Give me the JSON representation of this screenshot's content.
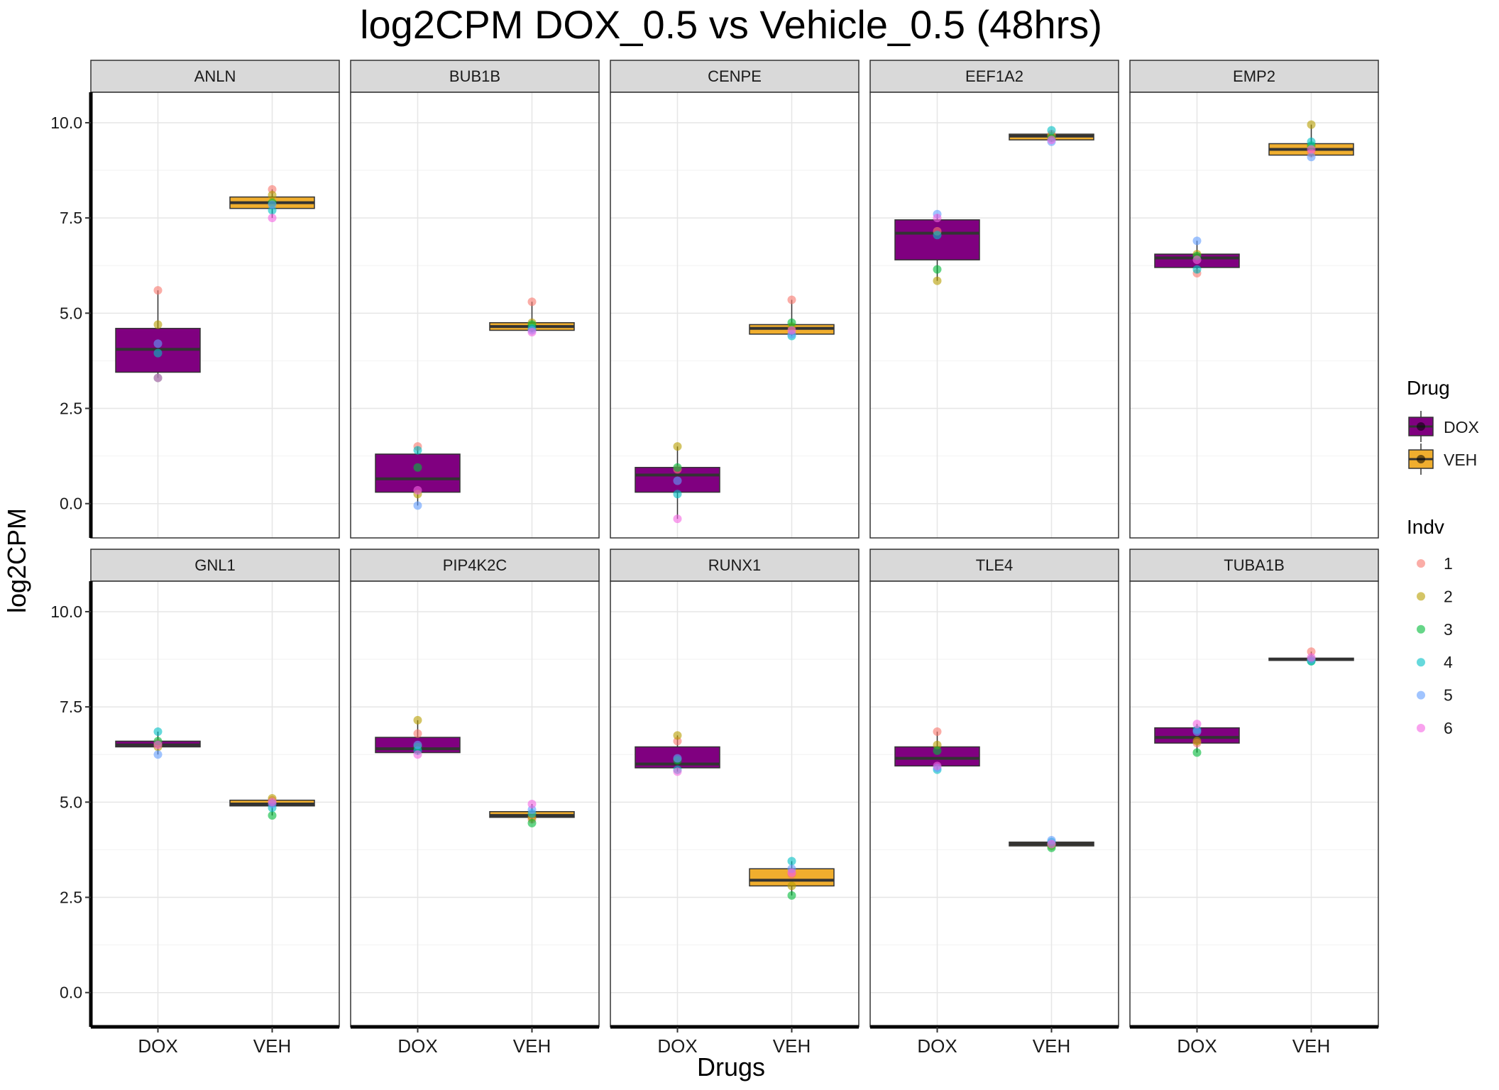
{
  "chart_data": {
    "type": "box",
    "title": "log2CPM DOX_0.5 vs Vehicle_0.5 (48hrs)",
    "xlabel": "Drugs",
    "ylabel": "log2CPM",
    "ylim": [
      -0.9,
      10.8
    ],
    "yticks": [
      0,
      2.5,
      5,
      7.5,
      10
    ],
    "ytick_labels": [
      "0.0",
      "2.5",
      "5.0",
      "7.5",
      "10.0"
    ],
    "categories": [
      "DOX",
      "VEH"
    ],
    "facet_layout": "2 rows x 5 columns",
    "grid": true,
    "legend": {
      "placement": "right",
      "drug": {
        "title": "Drug",
        "entries": [
          {
            "label": "DOX",
            "color": "#800080"
          },
          {
            "label": "VEH",
            "color": "#F0AE2E"
          }
        ]
      },
      "indv": {
        "title": "Indv",
        "entries": [
          {
            "label": "1",
            "color": "#F8766D"
          },
          {
            "label": "2",
            "color": "#B79F00"
          },
          {
            "label": "3",
            "color": "#00BA38"
          },
          {
            "label": "4",
            "color": "#00BFC4"
          },
          {
            "label": "5",
            "color": "#619CFF"
          },
          {
            "label": "6",
            "color": "#F564E3"
          }
        ]
      }
    },
    "facets": [
      {
        "name": "ANLN",
        "DOX": {
          "q1": 3.45,
          "median": 4.05,
          "q3": 4.6,
          "lo": 3.3,
          "hi": 5.6,
          "points": [
            5.6,
            4.7,
            3.3,
            3.95,
            4.2,
            3.3
          ]
        },
        "VEH": {
          "q1": 7.75,
          "median": 7.9,
          "q3": 8.05,
          "lo": 7.5,
          "hi": 8.25,
          "points": [
            8.25,
            8.1,
            7.9,
            7.7,
            7.85,
            7.5
          ]
        }
      },
      {
        "name": "BUB1B",
        "DOX": {
          "q1": 0.3,
          "median": 0.65,
          "q3": 1.3,
          "lo": -0.05,
          "hi": 1.5,
          "points": [
            1.5,
            0.25,
            0.95,
            1.4,
            -0.05,
            0.35
          ]
        },
        "VEH": {
          "q1": 4.55,
          "median": 4.65,
          "q3": 4.75,
          "lo": 4.5,
          "hi": 5.3,
          "points": [
            5.3,
            4.75,
            4.7,
            4.6,
            4.55,
            4.5
          ]
        }
      },
      {
        "name": "CENPE",
        "DOX": {
          "q1": 0.3,
          "median": 0.75,
          "q3": 0.95,
          "lo": -0.4,
          "hi": 1.5,
          "points": [
            0.9,
            1.5,
            0.95,
            0.25,
            0.6,
            -0.4
          ]
        },
        "VEH": {
          "q1": 4.45,
          "median": 4.6,
          "q3": 4.7,
          "lo": 4.4,
          "hi": 5.35,
          "points": [
            5.35,
            4.65,
            4.75,
            4.4,
            4.45,
            4.55
          ]
        }
      },
      {
        "name": "EEF1A2",
        "DOX": {
          "q1": 6.4,
          "median": 7.1,
          "q3": 7.45,
          "lo": 5.85,
          "hi": 7.6,
          "points": [
            7.15,
            5.85,
            6.15,
            7.05,
            7.6,
            7.5
          ]
        },
        "VEH": {
          "q1": 9.55,
          "median": 9.65,
          "q3": 9.7,
          "lo": 9.5,
          "hi": 9.8,
          "points": [
            9.7,
            9.65,
            9.6,
            9.8,
            9.5,
            9.55
          ]
        }
      },
      {
        "name": "EMP2",
        "DOX": {
          "q1": 6.2,
          "median": 6.45,
          "q3": 6.55,
          "lo": 6.05,
          "hi": 6.9,
          "points": [
            6.05,
            6.55,
            6.5,
            6.15,
            6.9,
            6.4
          ]
        },
        "VEH": {
          "q1": 9.15,
          "median": 9.3,
          "q3": 9.45,
          "lo": 9.1,
          "hi": 9.95,
          "points": [
            9.2,
            9.95,
            9.4,
            9.5,
            9.1,
            9.3
          ]
        }
      },
      {
        "name": "GNL1",
        "DOX": {
          "q1": 6.45,
          "median": 6.5,
          "q3": 6.6,
          "lo": 6.25,
          "hi": 6.85,
          "points": [
            6.55,
            6.45,
            6.6,
            6.85,
            6.25,
            6.5
          ]
        },
        "VEH": {
          "q1": 4.9,
          "median": 4.95,
          "q3": 5.05,
          "lo": 4.65,
          "hi": 5.1,
          "points": [
            5.05,
            5.1,
            4.65,
            4.85,
            4.95,
            5.0
          ]
        }
      },
      {
        "name": "PIP4K2C",
        "DOX": {
          "q1": 6.3,
          "median": 6.4,
          "q3": 6.7,
          "lo": 6.25,
          "hi": 7.15,
          "points": [
            6.8,
            7.15,
            6.45,
            6.35,
            6.5,
            6.25
          ]
        },
        "VEH": {
          "q1": 4.6,
          "median": 4.65,
          "q3": 4.75,
          "lo": 4.45,
          "hi": 4.95,
          "points": [
            4.55,
            4.6,
            4.45,
            4.7,
            4.8,
            4.95
          ]
        }
      },
      {
        "name": "RUNX1",
        "DOX": {
          "q1": 5.9,
          "median": 6.0,
          "q3": 6.45,
          "lo": 5.8,
          "hi": 6.75,
          "points": [
            6.6,
            6.75,
            6.1,
            5.85,
            6.15,
            5.8
          ]
        },
        "VEH": {
          "q1": 2.8,
          "median": 2.95,
          "q3": 3.25,
          "lo": 2.55,
          "hi": 3.45,
          "points": [
            3.1,
            2.8,
            2.55,
            3.45,
            3.25,
            3.15
          ]
        }
      },
      {
        "name": "TLE4",
        "DOX": {
          "q1": 5.95,
          "median": 6.15,
          "q3": 6.45,
          "lo": 5.85,
          "hi": 6.85,
          "points": [
            6.85,
            6.5,
            6.35,
            5.85,
            5.9,
            5.95
          ]
        },
        "VEH": {
          "q1": 3.85,
          "median": 3.9,
          "q3": 3.95,
          "lo": 3.8,
          "hi": 4.0,
          "points": [
            3.9,
            3.85,
            3.8,
            3.95,
            4.0,
            3.9
          ]
        }
      },
      {
        "name": "TUBA1B",
        "DOX": {
          "q1": 6.55,
          "median": 6.7,
          "q3": 6.95,
          "lo": 6.3,
          "hi": 7.05,
          "points": [
            6.55,
            6.6,
            6.3,
            6.9,
            6.85,
            7.05
          ]
        },
        "VEH": {
          "q1": 8.72,
          "median": 8.75,
          "q3": 8.78,
          "lo": 8.7,
          "hi": 8.95,
          "points": [
            8.95,
            8.75,
            8.7,
            8.7,
            8.75,
            8.8
          ]
        }
      }
    ]
  }
}
